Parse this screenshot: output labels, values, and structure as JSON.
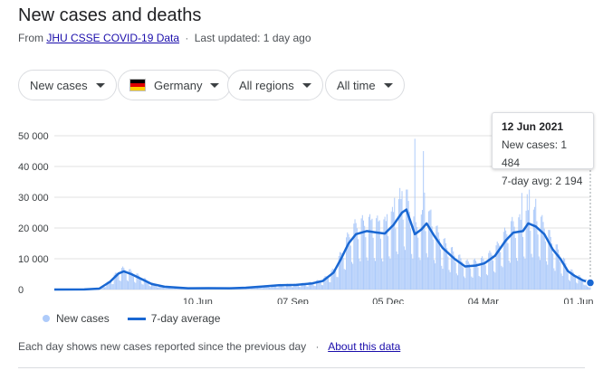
{
  "header": {
    "title": "New cases and deaths",
    "source_prefix": "From",
    "source_link": "JHU CSSE COVID-19 Data",
    "separator": "·",
    "updated": "Last updated: 1 day ago"
  },
  "filters": {
    "metric": "New cases",
    "country": "Germany",
    "region": "All regions",
    "period": "All time"
  },
  "tooltip": {
    "date": "12 Jun 2021",
    "new_cases": "New cases: 1 484",
    "avg": "7-day avg: 2 194"
  },
  "legend": {
    "bars": "New cases",
    "line": "7-day average"
  },
  "footer": {
    "note": "Each day shows new cases reported since the previous day",
    "separator": "·",
    "link": "About this data"
  },
  "colors": {
    "bars": "#aecbfa",
    "line": "#1967d2",
    "grid": "#e0e0e0",
    "cursor": "#9aa0a6"
  },
  "chart_data": {
    "type": "bar",
    "x_range": [
      "2020-01-28",
      "2021-06-12"
    ],
    "ylim": [
      0,
      50000
    ],
    "y_ticks": [
      0,
      10000,
      20000,
      30000,
      40000,
      50000
    ],
    "y_tick_labels": [
      "0",
      "10 000",
      "20 000",
      "30 000",
      "40 000",
      "50 000"
    ],
    "x_ticks": [
      "2020-06-10",
      "2020-09-07",
      "2020-12-05",
      "2021-03-04",
      "2021-06-01"
    ],
    "x_tick_labels": [
      "10 Jun",
      "07 Sep",
      "05 Dec",
      "04 Mar",
      "01 Jun"
    ],
    "series": [
      {
        "name": "7-day average",
        "kind": "line",
        "points": [
          [
            "2020-01-28",
            0
          ],
          [
            "2020-02-25",
            20
          ],
          [
            "2020-03-10",
            300
          ],
          [
            "2020-03-20",
            2500
          ],
          [
            "2020-03-28",
            5200
          ],
          [
            "2020-04-02",
            5900
          ],
          [
            "2020-04-09",
            5000
          ],
          [
            "2020-04-18",
            3500
          ],
          [
            "2020-04-28",
            1800
          ],
          [
            "2020-05-10",
            900
          ],
          [
            "2020-06-01",
            400
          ],
          [
            "2020-06-20",
            450
          ],
          [
            "2020-07-10",
            400
          ],
          [
            "2020-07-25",
            600
          ],
          [
            "2020-08-10",
            1000
          ],
          [
            "2020-08-25",
            1400
          ],
          [
            "2020-09-10",
            1500
          ],
          [
            "2020-09-25",
            2000
          ],
          [
            "2020-10-05",
            2800
          ],
          [
            "2020-10-15",
            5500
          ],
          [
            "2020-10-22",
            10000
          ],
          [
            "2020-10-29",
            15000
          ],
          [
            "2020-11-05",
            18000
          ],
          [
            "2020-11-15",
            19000
          ],
          [
            "2020-11-25",
            18500
          ],
          [
            "2020-12-02",
            18200
          ],
          [
            "2020-12-10",
            21000
          ],
          [
            "2020-12-18",
            25000
          ],
          [
            "2020-12-22",
            26000
          ],
          [
            "2020-12-26",
            22000
          ],
          [
            "2020-12-30",
            18000
          ],
          [
            "2021-01-05",
            19500
          ],
          [
            "2021-01-10",
            21500
          ],
          [
            "2021-01-17",
            17500
          ],
          [
            "2021-01-25",
            13500
          ],
          [
            "2021-02-05",
            10000
          ],
          [
            "2021-02-15",
            7500
          ],
          [
            "2021-02-25",
            7800
          ],
          [
            "2021-03-05",
            8500
          ],
          [
            "2021-03-15",
            11000
          ],
          [
            "2021-03-25",
            16000
          ],
          [
            "2021-04-01",
            18500
          ],
          [
            "2021-04-10",
            19000
          ],
          [
            "2021-04-15",
            21500
          ],
          [
            "2021-04-22",
            20500
          ],
          [
            "2021-04-30",
            18000
          ],
          [
            "2021-05-08",
            13000
          ],
          [
            "2021-05-15",
            10000
          ],
          [
            "2021-05-22",
            6000
          ],
          [
            "2021-05-28",
            4500
          ],
          [
            "2021-06-05",
            3000
          ],
          [
            "2021-06-12",
            2194
          ]
        ]
      },
      {
        "name": "New cases",
        "kind": "bars",
        "weekly_pattern": [
          1.25,
          1.3,
          1.2,
          1.1,
          0.9,
          0.55,
          0.5
        ],
        "spikes": [
          [
            "2020-11-20",
            23000
          ],
          [
            "2020-11-27",
            22500
          ],
          [
            "2020-12-04",
            24500
          ],
          [
            "2020-12-11",
            29800
          ],
          [
            "2020-12-16",
            33000
          ],
          [
            "2020-12-18",
            32000
          ],
          [
            "2020-12-30",
            49000
          ],
          [
            "2021-01-07",
            45000
          ],
          [
            "2021-01-08",
            31500
          ],
          [
            "2021-01-14",
            26000
          ],
          [
            "2021-04-09",
            31400
          ],
          [
            "2021-04-14",
            31000
          ],
          [
            "2021-04-16",
            32500
          ],
          [
            "2021-04-22",
            29500
          ]
        ]
      }
    ],
    "selected_point": {
      "date": "2021-06-12",
      "new_cases": 1484,
      "avg": 2194
    }
  }
}
